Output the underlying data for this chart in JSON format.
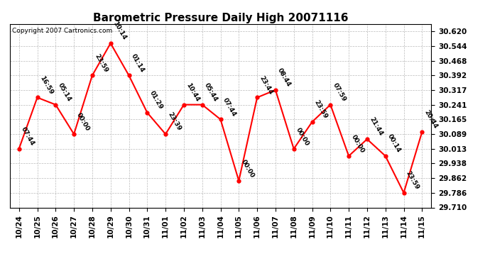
{
  "title": "Barometric Pressure Daily High 20071116",
  "copyright": "Copyright 2007 Cartronics.com",
  "dates": [
    "10/24",
    "10/25",
    "10/26",
    "10/27",
    "10/28",
    "10/29",
    "10/30",
    "10/31",
    "11/01",
    "11/02",
    "11/03",
    "11/04",
    "11/05",
    "11/06",
    "11/07",
    "11/08",
    "11/09",
    "11/10",
    "11/11",
    "11/12",
    "11/13",
    "11/14",
    "11/15"
  ],
  "values": [
    30.013,
    30.278,
    30.241,
    30.089,
    30.392,
    30.558,
    30.392,
    30.2,
    30.089,
    30.241,
    30.241,
    30.165,
    29.848,
    30.278,
    30.317,
    30.013,
    30.152,
    30.241,
    29.976,
    30.063,
    29.976,
    29.786,
    30.1
  ],
  "time_labels": [
    "07:44",
    "16:59",
    "05:14",
    "00:00",
    "23:59",
    "10:14",
    "01:14",
    "01:29",
    "23:39",
    "10:44",
    "05:44",
    "07:44",
    "00:00",
    "23:44",
    "08:44",
    "00:00",
    "23:59",
    "07:59",
    "00:00",
    "21:44",
    "00:14",
    "23:59",
    "20:44"
  ],
  "ylim_min": 29.71,
  "ylim_max": 30.658,
  "yticks": [
    29.71,
    29.786,
    29.862,
    29.938,
    30.013,
    30.089,
    30.165,
    30.241,
    30.317,
    30.392,
    30.468,
    30.544,
    30.62
  ],
  "line_color": "#ff0000",
  "marker_color": "#ff0000",
  "bg_color": "#ffffff",
  "plot_bg_color": "#ffffff",
  "grid_color": "#bbbbbb",
  "title_fontsize": 11,
  "tick_fontsize": 7.5,
  "label_fontsize": 6.5
}
